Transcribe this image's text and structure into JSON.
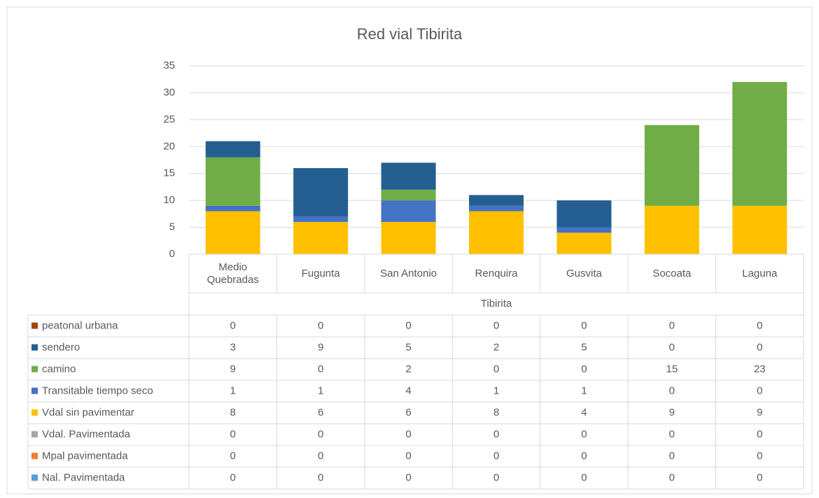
{
  "chart_data": {
    "type": "stacked_bar",
    "title": "Red vial Tibirita",
    "categories": [
      "Medio Quebradas",
      "Fugunta",
      "San Antonio",
      "Renquira",
      "Gusvita",
      "Socoata",
      "Laguna"
    ],
    "category_group": "Tibirita",
    "series": [
      {
        "name": "peatonal urbana",
        "color": "#9e480e",
        "values": [
          0,
          0,
          0,
          0,
          0,
          0,
          0
        ]
      },
      {
        "name": "sendero",
        "color": "#255e91",
        "values": [
          3,
          9,
          5,
          2,
          5,
          0,
          0
        ]
      },
      {
        "name": "camino",
        "color": "#70ad47",
        "values": [
          9,
          0,
          2,
          0,
          0,
          15,
          23
        ]
      },
      {
        "name": "Transitable tiempo seco",
        "color": "#4472c4",
        "values": [
          1,
          1,
          4,
          1,
          1,
          0,
          0
        ]
      },
      {
        "name": "Vdal sin pavimentar",
        "color": "#ffc000",
        "values": [
          8,
          6,
          6,
          8,
          4,
          9,
          9
        ]
      },
      {
        "name": "Vdal. Pavimentada",
        "color": "#a5a5a5",
        "values": [
          0,
          0,
          0,
          0,
          0,
          0,
          0
        ]
      },
      {
        "name": "Mpal pavimentada",
        "color": "#ed7d31",
        "values": [
          0,
          0,
          0,
          0,
          0,
          0,
          0
        ]
      },
      {
        "name": "Nal. Pavimentada",
        "color": "#5b9bd5",
        "values": [
          0,
          0,
          0,
          0,
          0,
          0,
          0
        ]
      }
    ],
    "ylim": [
      0,
      35
    ],
    "yticks": [
      0,
      5,
      10,
      15,
      20,
      25,
      30,
      35
    ],
    "grid": true,
    "data_table": true
  }
}
